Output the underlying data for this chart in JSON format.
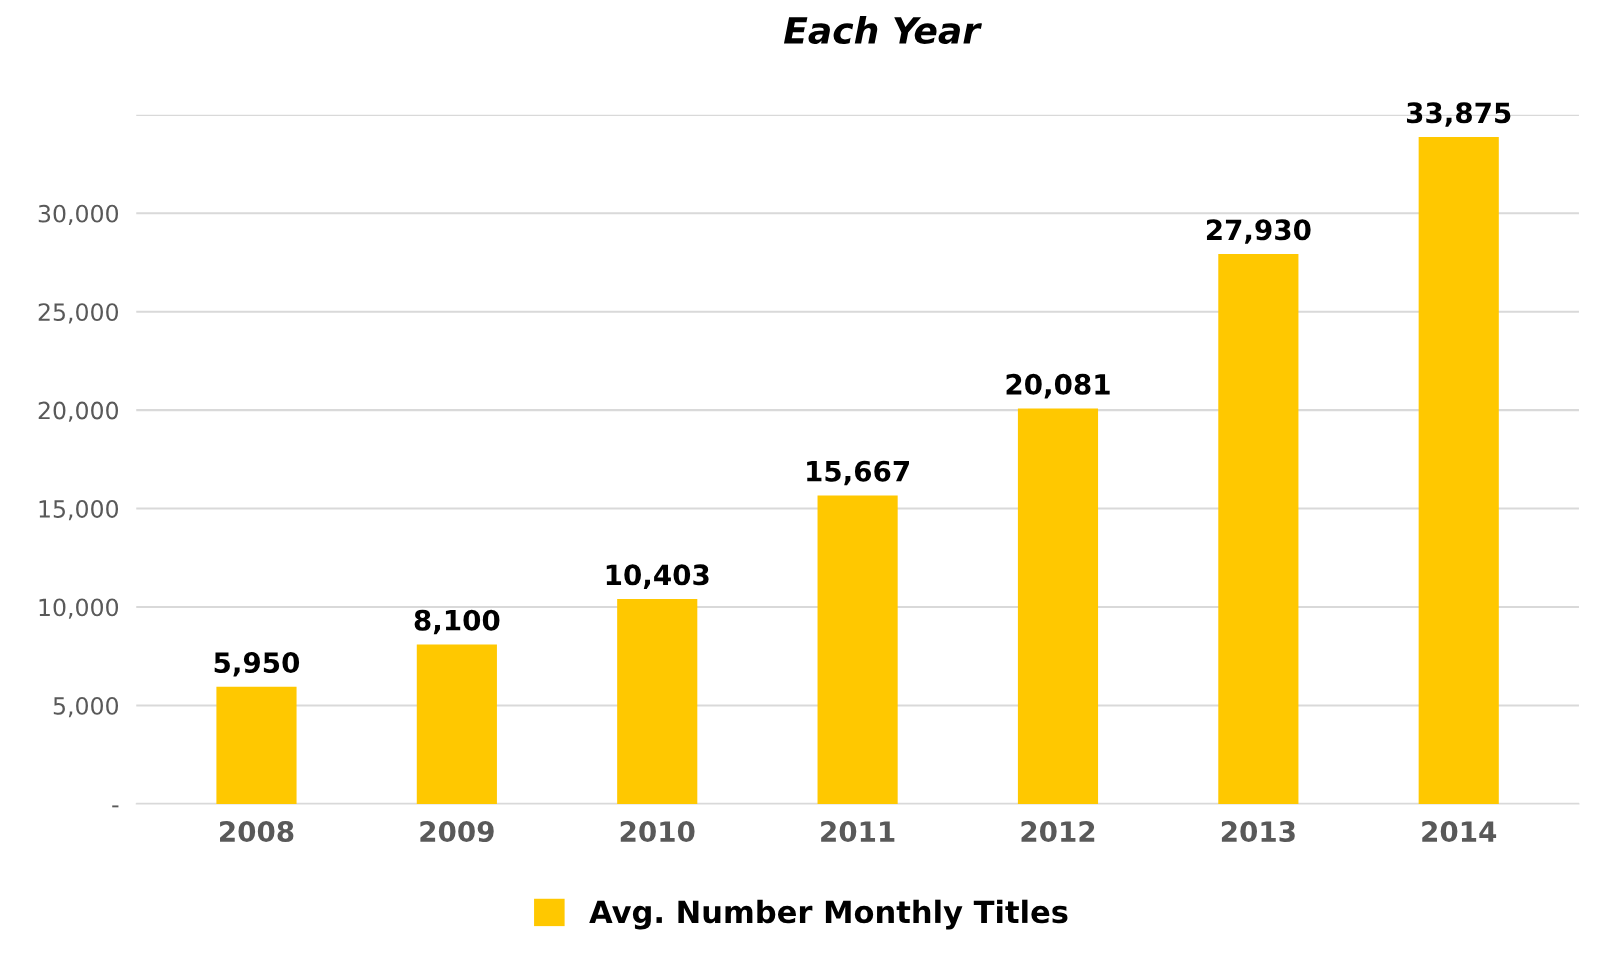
{
  "chart_data": {
    "type": "bar",
    "title": "Each Year",
    "categories": [
      "2008",
      "2009",
      "2010",
      "2011",
      "2012",
      "2013",
      "2014"
    ],
    "series": [
      {
        "name": "Avg. Number Monthly Titles",
        "color": "#ffc800",
        "values": [
          5950,
          8100,
          10403,
          15667,
          20081,
          27930,
          33875
        ],
        "value_labels": [
          "5,950",
          "8,100",
          "10,403",
          "15,667",
          "20,081",
          "27,930",
          "33,875"
        ]
      }
    ],
    "ylim": [
      0,
      35000
    ],
    "yticks": [
      {
        "value": 0,
        "label": "-"
      },
      {
        "value": 5000,
        "label": "5,000"
      },
      {
        "value": 10000,
        "label": "10,000"
      },
      {
        "value": 15000,
        "label": "15,000"
      },
      {
        "value": 20000,
        "label": "20,000"
      },
      {
        "value": 25000,
        "label": "25,000"
      },
      {
        "value": 30000,
        "label": "30,000"
      },
      {
        "value": 35000,
        "label": null
      }
    ],
    "grid": "y",
    "legend": "bottom"
  }
}
